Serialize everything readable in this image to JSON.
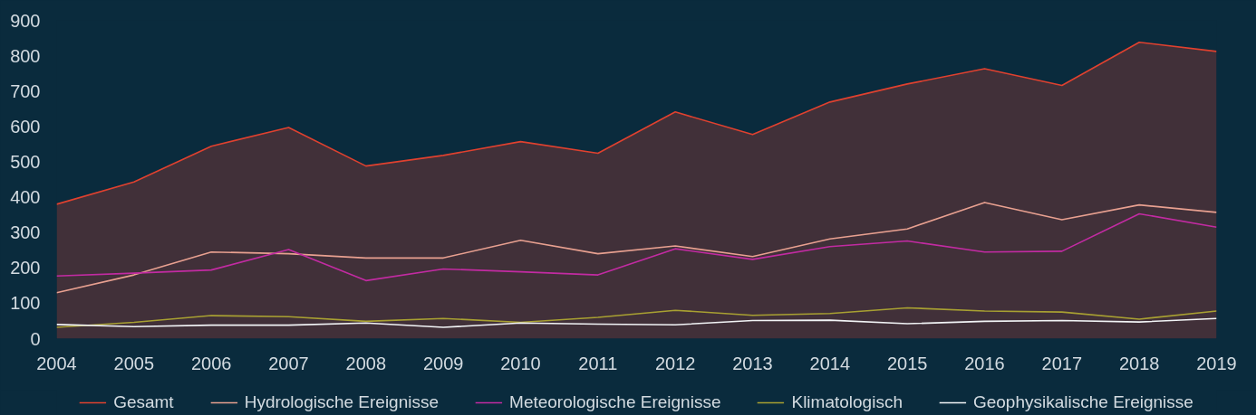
{
  "chart_data": {
    "type": "line",
    "x": [
      2004,
      2005,
      2006,
      2007,
      2008,
      2009,
      2010,
      2011,
      2012,
      2013,
      2014,
      2015,
      2016,
      2017,
      2018,
      2019
    ],
    "xlim": [
      2004,
      2019
    ],
    "xticks": [
      2004,
      2005,
      2006,
      2007,
      2008,
      2009,
      2010,
      2011,
      2012,
      2013,
      2014,
      2015,
      2016,
      2017,
      2018,
      2019
    ],
    "ylim": [
      0,
      900
    ],
    "yticks": [
      0,
      100,
      200,
      300,
      400,
      500,
      600,
      700,
      800,
      900
    ],
    "grid": false,
    "legend": "bottom",
    "series": [
      {
        "name": "Gesamt",
        "type": "area",
        "color": "#e0412f",
        "values": [
          380,
          443,
          544,
          597,
          488,
          518,
          557,
          524,
          641,
          577,
          669,
          720,
          763,
          716,
          838,
          812
        ]
      },
      {
        "name": "Hydrologische Ereignisse",
        "color": "#e8a090",
        "values": [
          130,
          180,
          245,
          240,
          228,
          228,
          278,
          240,
          262,
          232,
          282,
          310,
          385,
          336,
          378,
          357
        ]
      },
      {
        "name": "Meteorologische Ereignisse",
        "color": "#c22ba2",
        "values": [
          177,
          185,
          194,
          252,
          164,
          197,
          189,
          180,
          254,
          224,
          260,
          276,
          245,
          247,
          353,
          315
        ]
      },
      {
        "name": "Klimatologisch",
        "color": "#a8a032",
        "values": [
          32,
          46,
          65,
          62,
          49,
          57,
          46,
          60,
          80,
          66,
          71,
          87,
          78,
          75,
          55,
          78
        ]
      },
      {
        "name": "Geophysikalische Ereignisse",
        "color": "#f2f4f6",
        "values": [
          40,
          34,
          38,
          38,
          44,
          32,
          44,
          41,
          39,
          51,
          52,
          42,
          49,
          51,
          47,
          57
        ]
      }
    ]
  }
}
